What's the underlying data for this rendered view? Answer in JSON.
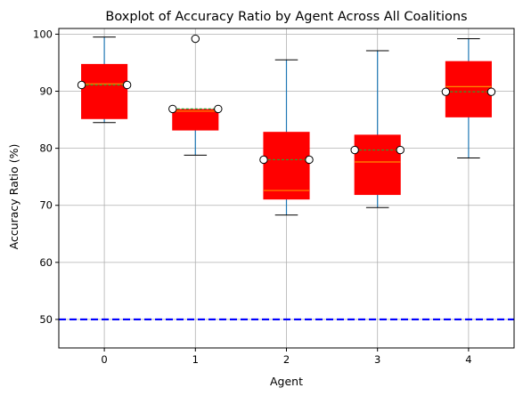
{
  "chart_data": {
    "type": "box",
    "title": "Boxplot of Accuracy Ratio by Agent Across All Coalitions",
    "xlabel": "Agent",
    "ylabel": "Accuracy Ratio (%)",
    "ylim": [
      45,
      101
    ],
    "xlim": [
      -0.5,
      4.5
    ],
    "yticks": [
      50,
      60,
      70,
      80,
      90,
      100
    ],
    "categories": [
      "0",
      "1",
      "2",
      "3",
      "4"
    ],
    "grid": true,
    "reference_line": {
      "y": 50,
      "style": "dashed",
      "color": "#0000ff"
    },
    "colors": {
      "box_fill": "#ff0000",
      "median": "#ff8c00",
      "mean_line": "#2ca02c",
      "whisker": "#1f77b4",
      "cap": "#000000",
      "grid": "#b0b0b0"
    },
    "boxes": [
      {
        "agent": "0",
        "whisker_low": 84.5,
        "q1": 85.2,
        "median": 91.3,
        "mean": 91.1,
        "q3": 94.7,
        "whisker_high": 99.5,
        "fliers": []
      },
      {
        "agent": "1",
        "whisker_low": 78.8,
        "q1": 83.2,
        "median": 86.5,
        "mean": 86.9,
        "q3": 86.8,
        "whisker_high": 86.8,
        "fliers": [
          99.2
        ]
      },
      {
        "agent": "2",
        "whisker_low": 68.3,
        "q1": 71.1,
        "median": 72.6,
        "mean": 78.0,
        "q3": 82.8,
        "whisker_high": 95.5,
        "fliers": []
      },
      {
        "agent": "3",
        "whisker_low": 69.6,
        "q1": 71.9,
        "median": 77.6,
        "mean": 79.7,
        "q3": 82.3,
        "whisker_high": 97.1,
        "fliers": []
      },
      {
        "agent": "4",
        "whisker_low": 78.3,
        "q1": 85.5,
        "median": 90.8,
        "mean": 89.9,
        "q3": 95.2,
        "whisker_high": 99.2,
        "fliers": []
      }
    ]
  }
}
